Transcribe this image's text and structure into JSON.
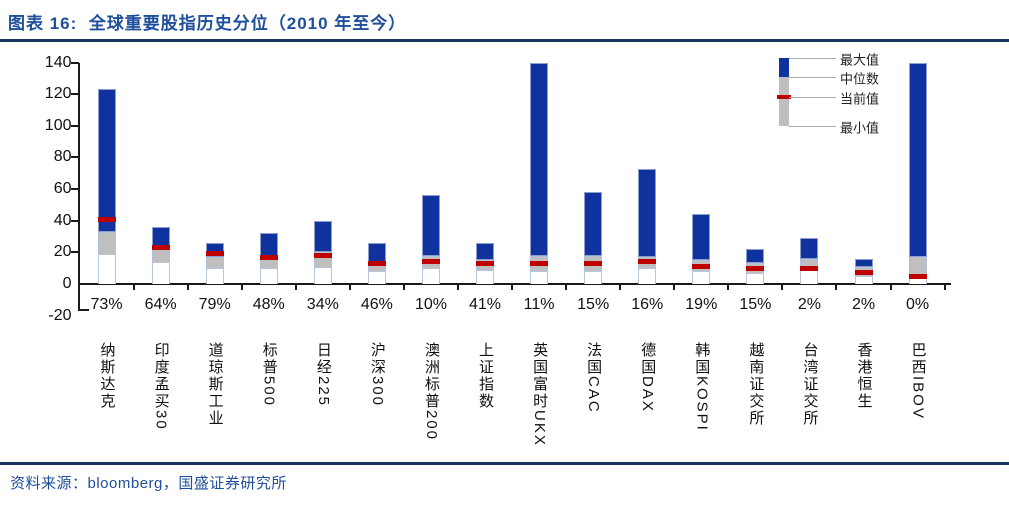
{
  "figure": {
    "title": "图表 16:  全球重要股指历史分位（2010 年至今）",
    "source": "资料来源：bloomberg，国盛证券研究所"
  },
  "colors": {
    "title_blue": "#1F4E9B",
    "rule_navy": "#17375E",
    "bar_blue": "#10329E",
    "bar_gray": "#BFBFBF",
    "current_red": "#C00000",
    "axis_text": "#111111"
  },
  "chart_data": {
    "type": "bar",
    "subtype": "floating-range-bar",
    "title": "全球重要股指历史分位（2010 年至今）",
    "grid": false,
    "ylim": [
      -20,
      140
    ],
    "yticks": [
      140,
      120,
      100,
      80,
      60,
      40,
      20,
      0,
      -20
    ],
    "legend": {
      "position": "top-right",
      "entries": [
        "最大值",
        "中位数",
        "当前值",
        "最小值"
      ]
    },
    "categories": [
      "纳斯达克",
      "印度孟买30",
      "道琼斯工业",
      "标普500",
      "日经225",
      "沪深300",
      "澳洲标普200",
      "上证指数",
      "英国富时UKX",
      "法国CAC",
      "德国DAX",
      "韩国KOSPI",
      "越南证交所",
      "台湾证交所",
      "香港恒生",
      "巴西IBOV"
    ],
    "percentile_labels": [
      "73%",
      "64%",
      "79%",
      "48%",
      "34%",
      "46%",
      "10%",
      "41%",
      "11%",
      "15%",
      "16%",
      "19%",
      "15%",
      "2%",
      "2%",
      "0%"
    ],
    "series": [
      {
        "name": "最大值",
        "values": [
          123,
          36,
          26,
          32,
          40,
          26,
          56,
          26,
          140,
          58,
          73,
          44,
          22,
          29,
          16,
          140
        ]
      },
      {
        "name": "中位数",
        "values": [
          33,
          22,
          17,
          18,
          20,
          14,
          18,
          15,
          18,
          18,
          17,
          15,
          13,
          16,
          11,
          17
        ]
      },
      {
        "name": "当前值",
        "values": [
          41,
          23,
          19,
          17,
          18,
          13,
          14,
          13,
          13,
          13,
          14,
          11,
          10,
          10,
          7,
          5
        ]
      },
      {
        "name": "最小值",
        "values": [
          19,
          14,
          10,
          10,
          11,
          8,
          10,
          9,
          8,
          8,
          10,
          8,
          7,
          9,
          5,
          5
        ]
      }
    ]
  }
}
